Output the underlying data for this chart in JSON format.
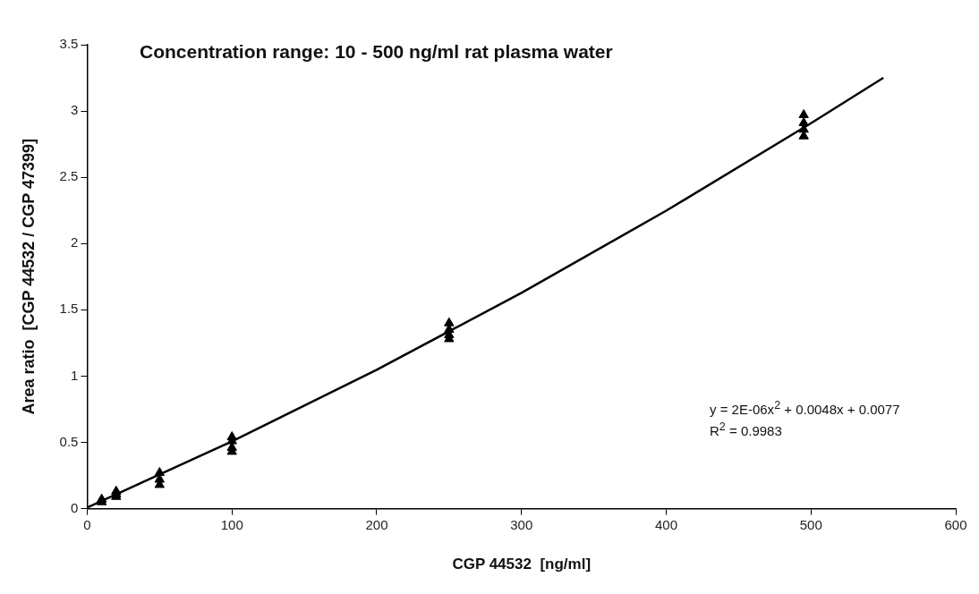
{
  "chart_data": {
    "type": "scatter",
    "title": "Concentration range: 10 - 500 ng/ml rat plasma water",
    "xlabel": "CGP 44532  [ng/ml]",
    "ylabel": "Area ratio  [CGP 44532 / CGP 47399]",
    "series": [
      {
        "color": "#000000",
        "marker": "triangle",
        "x": [
          10,
          10,
          20,
          20,
          20,
          50,
          50,
          50,
          100,
          100,
          100,
          100,
          250,
          250,
          250,
          250,
          495,
          495,
          495,
          495
        ],
        "values": [
          0.05,
          0.07,
          0.09,
          0.11,
          0.13,
          0.18,
          0.22,
          0.27,
          0.43,
          0.46,
          0.51,
          0.54,
          1.28,
          1.31,
          1.35,
          1.4,
          2.81,
          2.86,
          2.91,
          2.97
        ]
      },
      {
        "type": "line",
        "color": "#000000",
        "marker": "none",
        "x": [
          0,
          100,
          200,
          300,
          400,
          500,
          550
        ],
        "values": [
          0.008,
          0.508,
          1.048,
          1.628,
          2.248,
          2.908,
          3.25
        ]
      }
    ],
    "xlim": [
      0,
      600
    ],
    "xticks": [
      0,
      100,
      200,
      300,
      400,
      500,
      600
    ],
    "ylim": [
      0,
      3.5
    ],
    "yticks": [
      0,
      0.5,
      1,
      1.5,
      2,
      2.5,
      3,
      3.5
    ],
    "annotations": [
      "y = 2E-06x$^{2}$ + 0.0048x + 0.0077",
      "R$^{2}$ = 0.9983"
    ],
    "grid": false,
    "legend": false
  }
}
